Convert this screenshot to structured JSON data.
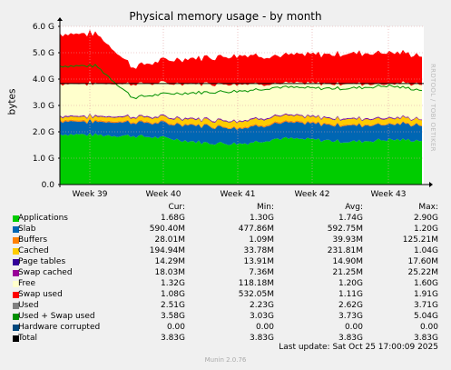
{
  "title": "Physical memory usage - by month",
  "side_note": "RRDTOOL / TOBI OETIKER",
  "footer": {
    "last_update": "Last update: Sat Oct 25 17:00:09 2025",
    "munin": "Munin 2.0.76"
  },
  "legend": {
    "headers": {
      "cur": "Cur:",
      "min": "Min:",
      "avg": "Avg:",
      "max": "Max:"
    },
    "rows": [
      {
        "name": "Applications",
        "color": "#00cc00",
        "cur": "1.68G",
        "min": "1.30G",
        "avg": "1.74G",
        "max": "2.90G"
      },
      {
        "name": "Slab",
        "color": "#0066b3",
        "cur": "590.40M",
        "min": "477.86M",
        "avg": "592.75M",
        "max": "1.20G"
      },
      {
        "name": "Buffers",
        "color": "#ff8000",
        "cur": "28.01M",
        "min": "1.09M",
        "avg": "39.93M",
        "max": "125.21M"
      },
      {
        "name": "Cached",
        "color": "#ffcc00",
        "cur": "194.94M",
        "min": "33.78M",
        "avg": "231.81M",
        "max": "1.04G"
      },
      {
        "name": "Page tables",
        "color": "#330099",
        "cur": "14.29M",
        "min": "13.91M",
        "avg": "14.90M",
        "max": "17.60M"
      },
      {
        "name": "Swap cached",
        "color": "#990099",
        "cur": "18.03M",
        "min": "7.36M",
        "avg": "21.25M",
        "max": "25.22M"
      },
      {
        "name": "Free",
        "color": "#ffffcc",
        "cur": "1.32G",
        "min": "118.18M",
        "avg": "1.20G",
        "max": "1.60G"
      },
      {
        "name": "Swap used",
        "color": "#ff0000",
        "cur": "1.08G",
        "min": "532.05M",
        "avg": "1.11G",
        "max": "1.91G"
      },
      {
        "name": "Used",
        "color": "#808080",
        "cur": "2.51G",
        "min": "2.23G",
        "avg": "2.62G",
        "max": "3.71G"
      },
      {
        "name": "Used + Swap used",
        "color": "#008f00",
        "cur": "3.58G",
        "min": "3.03G",
        "avg": "3.73G",
        "max": "5.04G"
      },
      {
        "name": "Hardware corrupted",
        "color": "#00487d",
        "cur": "0.00",
        "min": "0.00",
        "avg": "0.00",
        "max": "0.00"
      },
      {
        "name": "Total",
        "color": "#000000",
        "cur": "3.83G",
        "min": "3.83G",
        "avg": "3.83G",
        "max": "3.83G"
      }
    ]
  },
  "chart_data": {
    "type": "area",
    "title": "Physical memory usage - by month",
    "ylabel": "bytes",
    "unit": "G",
    "ylim": [
      0,
      6
    ],
    "yticks": [
      "0.0",
      "1.0 G",
      "2.0 G",
      "3.0 G",
      "4.0 G",
      "5.0 G",
      "6.0 G"
    ],
    "xticks": [
      "Week 39",
      "Week 40",
      "Week 41",
      "Week 42",
      "Week 43"
    ],
    "x": [
      "Week 38",
      "Week 39",
      "Week 40",
      "Week 40",
      "Week 41",
      "Week 41",
      "Week 42",
      "Week 42",
      "Week 43",
      "Week 43",
      "Week 43"
    ],
    "grid": true,
    "series": [
      {
        "name": "Applications",
        "values": [
          1.92,
          1.88,
          1.85,
          1.75,
          1.58,
          1.55,
          1.75,
          1.7,
          1.62,
          1.7,
          1.68
        ]
      },
      {
        "name": "Slab",
        "values": [
          0.5,
          0.5,
          0.52,
          0.55,
          0.65,
          0.6,
          0.58,
          0.6,
          0.62,
          0.6,
          0.59
        ]
      },
      {
        "name": "Buffers",
        "values": [
          0.05,
          0.05,
          0.04,
          0.04,
          0.03,
          0.04,
          0.05,
          0.04,
          0.04,
          0.03,
          0.03
        ]
      },
      {
        "name": "Cached",
        "values": [
          0.12,
          0.14,
          0.16,
          0.18,
          0.2,
          0.22,
          0.22,
          0.2,
          0.2,
          0.19,
          0.19
        ]
      },
      {
        "name": "Page tables",
        "values": [
          0.02,
          0.02,
          0.02,
          0.02,
          0.02,
          0.02,
          0.02,
          0.02,
          0.02,
          0.02,
          0.01
        ]
      },
      {
        "name": "Swap cached",
        "values": [
          0.02,
          0.02,
          0.02,
          0.02,
          0.02,
          0.02,
          0.02,
          0.02,
          0.02,
          0.02,
          0.02
        ]
      },
      {
        "name": "Free",
        "values": [
          1.2,
          1.22,
          1.22,
          1.27,
          1.33,
          1.38,
          1.19,
          1.25,
          1.31,
          1.27,
          1.31
        ]
      },
      {
        "name": "Swap used",
        "values": [
          1.9,
          1.9,
          0.65,
          0.9,
          1.0,
          1.1,
          1.05,
          1.1,
          1.15,
          1.2,
          1.08
        ]
      },
      {
        "name": "Used + Swap used",
        "values": [
          4.5,
          4.5,
          3.3,
          3.45,
          3.5,
          3.55,
          3.7,
          3.65,
          3.65,
          3.75,
          3.58
        ]
      },
      {
        "name": "Total",
        "values": [
          3.83,
          3.83,
          3.83,
          3.83,
          3.83,
          3.83,
          3.83,
          3.83,
          3.83,
          3.83,
          3.83
        ]
      }
    ]
  }
}
